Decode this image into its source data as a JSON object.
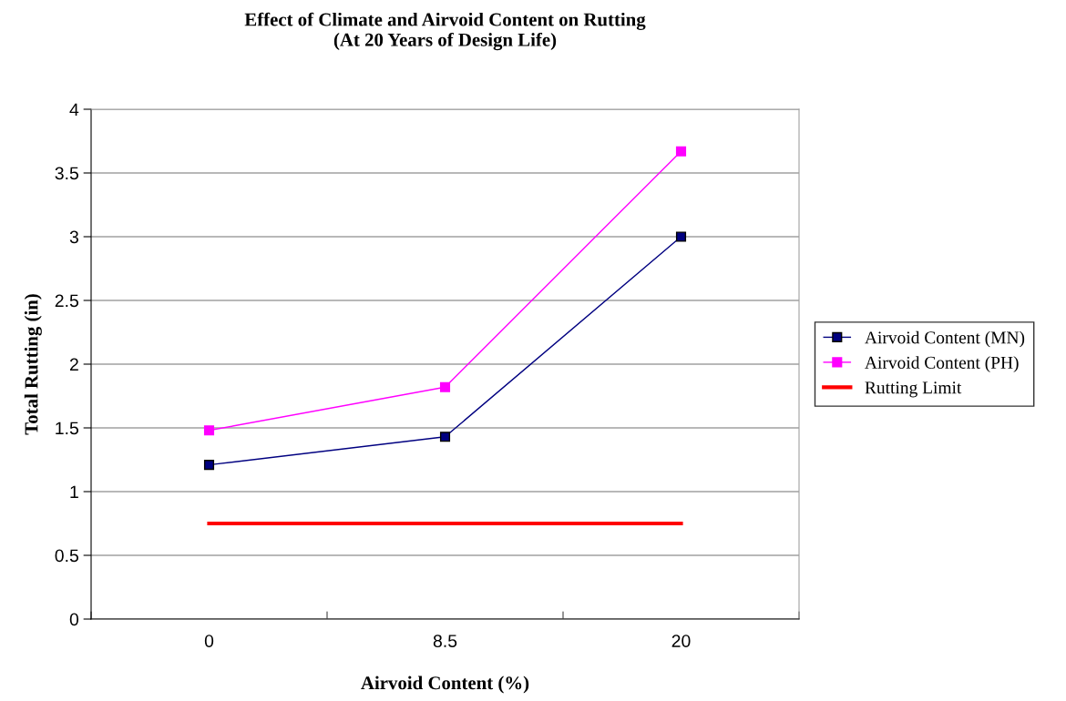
{
  "chart_data": {
    "type": "line",
    "title": "Effect of Climate and Airvoid Content on Rutting\n(At 20 Years of Design Life)",
    "xlabel": "Airvoid Content (%)",
    "ylabel": "Total Rutting (in)",
    "categories": [
      "0",
      "8.5",
      "20"
    ],
    "series": [
      {
        "name": "Airvoid Content (MN)",
        "color": "#000080",
        "values": [
          1.21,
          1.43,
          3.0
        ]
      },
      {
        "name": "Airvoid Content (PH)",
        "color": "#ff00ff",
        "values": [
          1.48,
          1.82,
          3.67
        ]
      },
      {
        "name": "Rutting Limit",
        "color": "#ff0000",
        "values": [
          0.75,
          0.75,
          0.75
        ],
        "marker": "none"
      }
    ],
    "marker": "square",
    "line_style": "solid",
    "ylim": [
      0,
      4
    ],
    "yticks": [
      0,
      0.5,
      1,
      1.5,
      2,
      2.5,
      3,
      3.5,
      4
    ],
    "grid": "y",
    "legend": "right"
  }
}
